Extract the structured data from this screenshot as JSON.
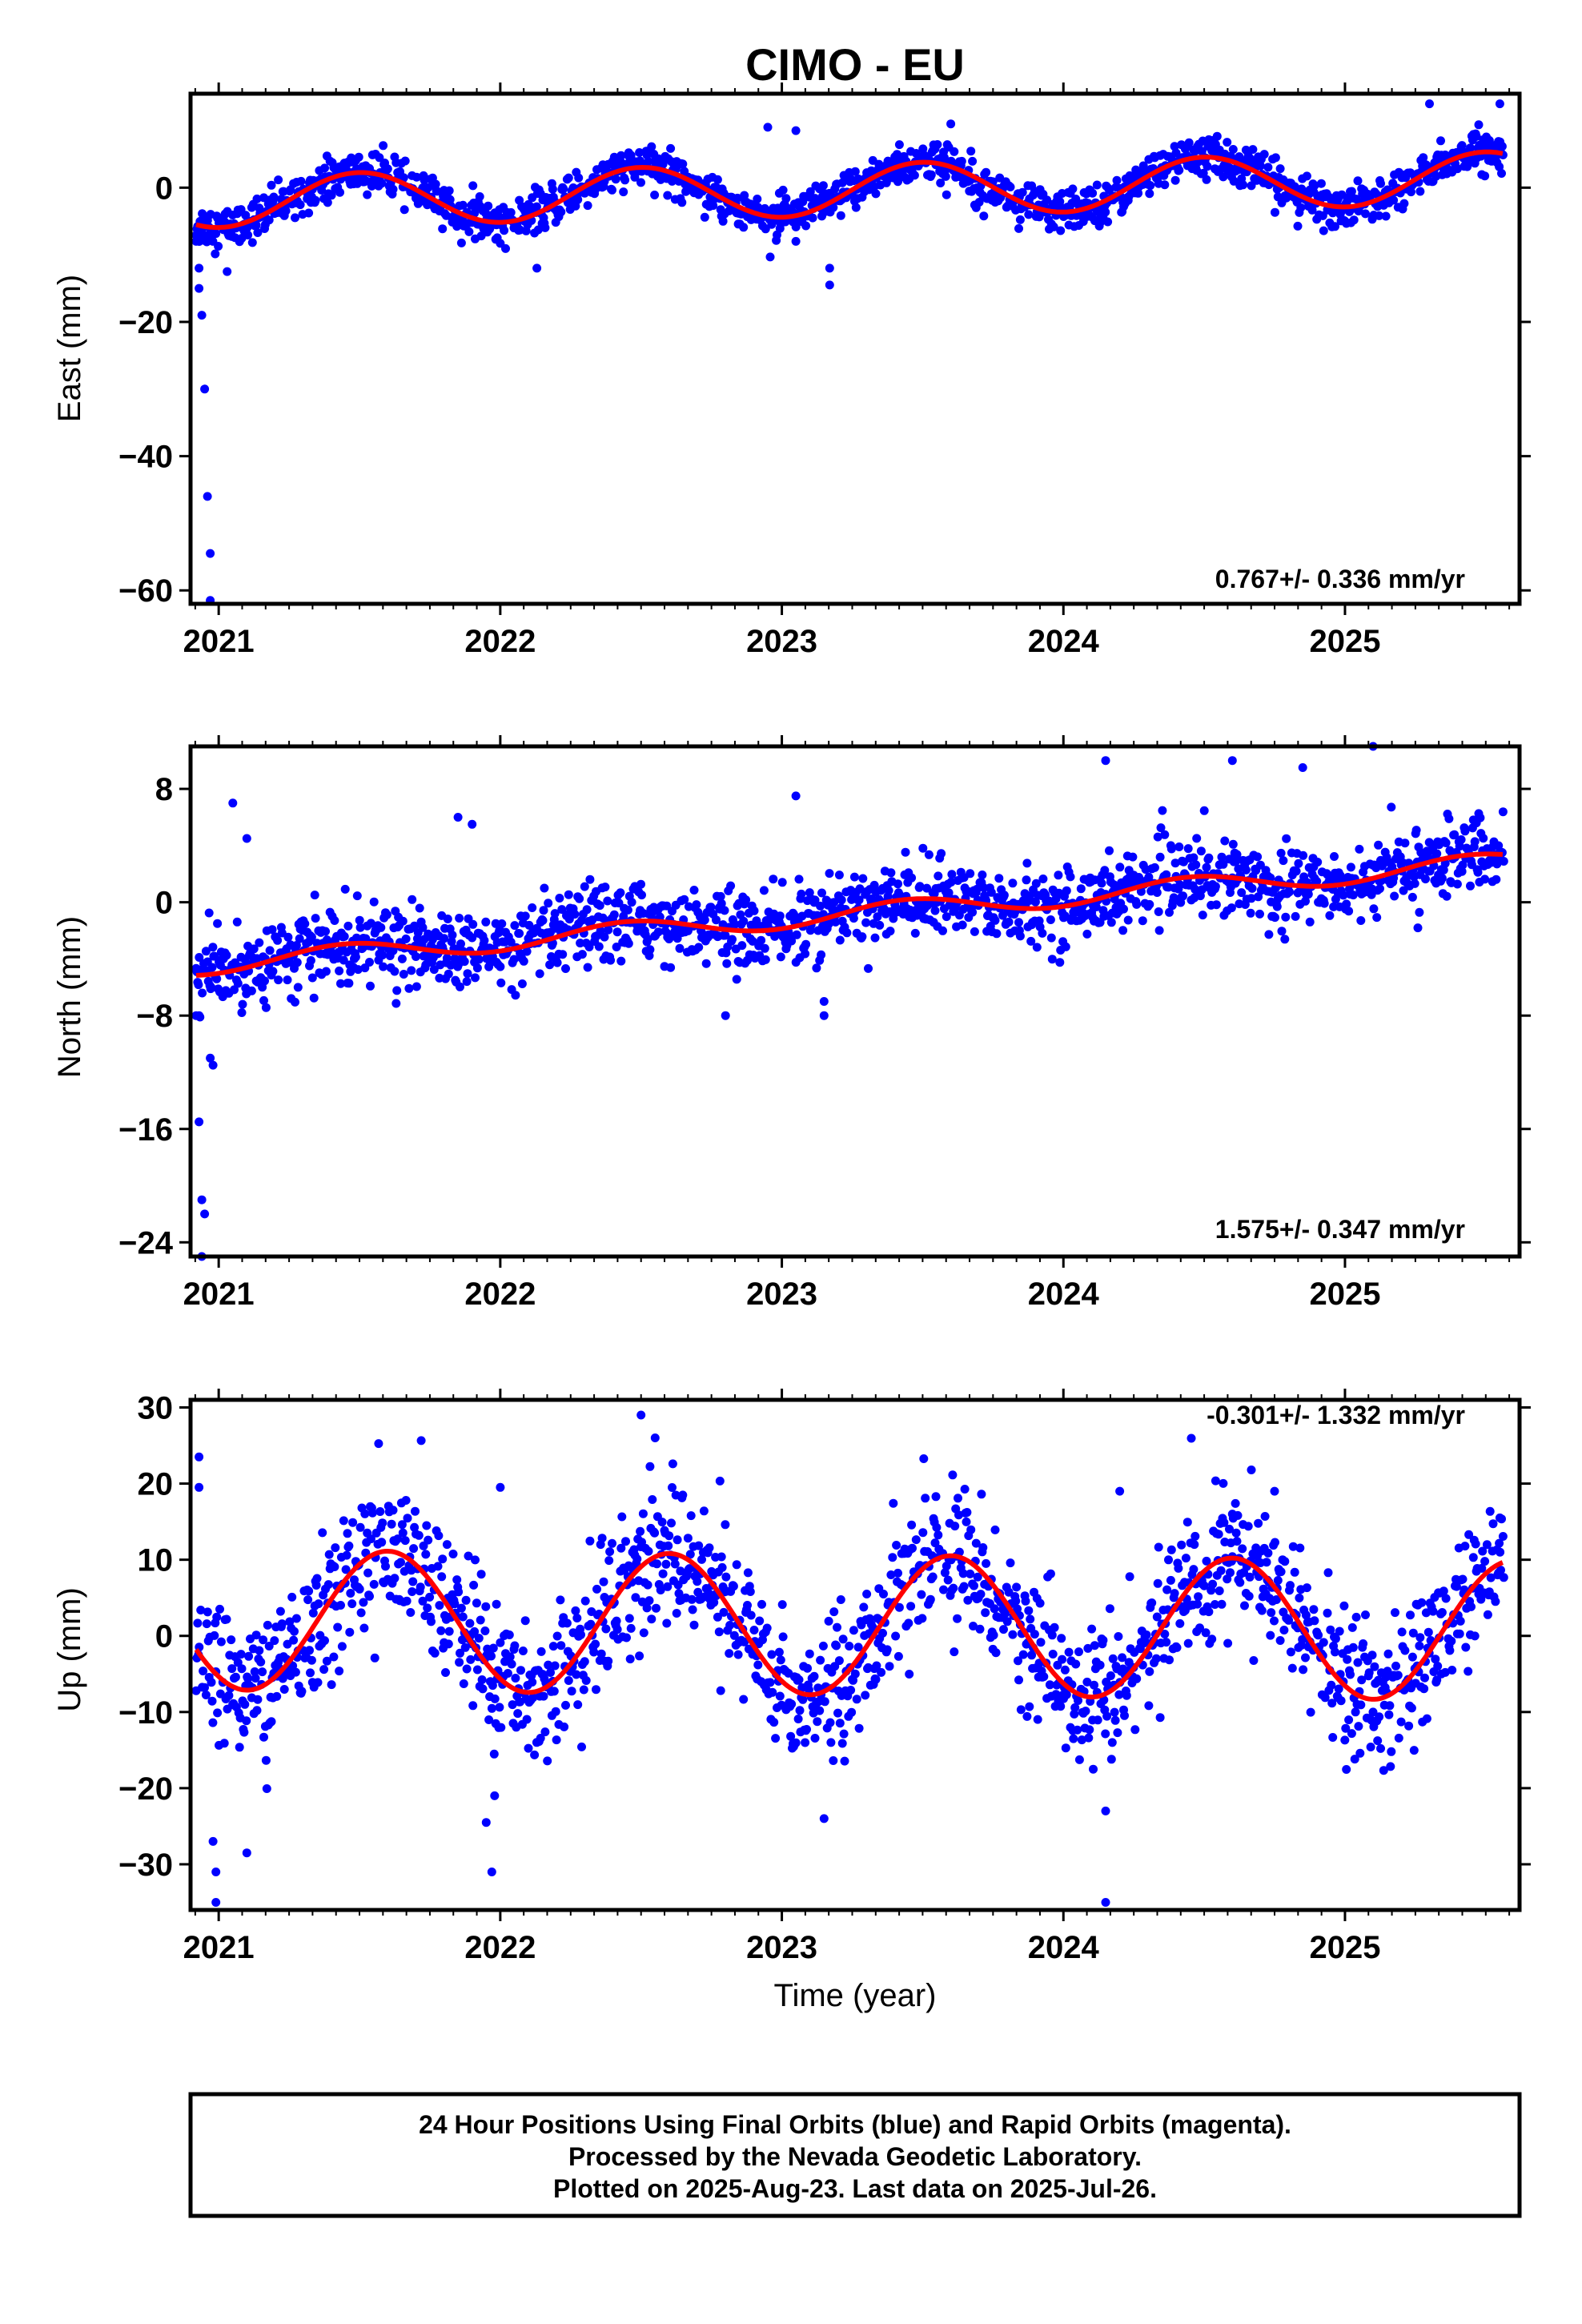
{
  "chart_data": {
    "title": "CIMO - EU",
    "xlabel": "Time (year)",
    "x_ticks": [
      "2021",
      "2022",
      "2023",
      "2024",
      "2025"
    ],
    "xlim": [
      2020.9,
      2025.62
    ],
    "colors": {
      "points": "#0000ff",
      "fit": "#ff0000",
      "frame": "#000000"
    },
    "panels": [
      {
        "type": "scatter",
        "ylabel": "East (mm)",
        "ylim": [
          -62,
          14
        ],
        "y_ticks": [
          "0",
          "−20",
          "−40",
          "−60"
        ],
        "y_tick_values": [
          0,
          -20,
          -40,
          -60
        ],
        "rate": "0.767+/- 0.336 mm/yr",
        "fit": {
          "offset": -0.5,
          "trend": 0.767,
          "annual_amplitude": 3.9,
          "annual_peak": 0.5
        },
        "scatter_sd": 1.5,
        "outliers": [
          [
            2020.92,
            -8
          ],
          [
            2020.93,
            -12
          ],
          [
            2020.93,
            -15
          ],
          [
            2020.94,
            -19
          ],
          [
            2020.95,
            -30
          ],
          [
            2020.96,
            -46
          ],
          [
            2020.97,
            -54.5
          ],
          [
            2020.97,
            -61.5
          ],
          [
            2021.03,
            -12.5
          ],
          [
            2023.17,
            -12
          ],
          [
            2023.17,
            -14.5
          ],
          [
            2022.95,
            9
          ],
          [
            2023.05,
            8.5
          ],
          [
            2023.05,
            -8
          ],
          [
            2022.13,
            -12
          ],
          [
            2023.6,
            9.5
          ],
          [
            2025.3,
            12.5
          ],
          [
            2025.55,
            12.5
          ]
        ]
      },
      {
        "type": "scatter",
        "ylabel": "North (mm)",
        "ylim": [
          -25,
          11
        ],
        "y_ticks": [
          "8",
          "0",
          "−8",
          "−16",
          "−24"
        ],
        "y_tick_values": [
          8,
          0,
          -8,
          -16,
          -24
        ],
        "rate": "1.575+/- 0.347 mm/yr",
        "fit": {
          "offset": -1.2,
          "trend": 1.575,
          "annual_amplitude": 0.7,
          "annual_peak": 0.45
        },
        "scatter_sd": 1.3,
        "outliers": [
          [
            2020.92,
            -8
          ],
          [
            2020.93,
            -8
          ],
          [
            2020.93,
            -15.5
          ],
          [
            2020.94,
            -21
          ],
          [
            2020.95,
            -22
          ],
          [
            2020.94,
            -25
          ],
          [
            2020.97,
            -11
          ],
          [
            2020.98,
            -11.5
          ],
          [
            2021.05,
            7
          ],
          [
            2021.1,
            4.5
          ],
          [
            2021.85,
            6
          ],
          [
            2021.9,
            5.5
          ],
          [
            2022.8,
            -8
          ],
          [
            2023.05,
            7.5
          ],
          [
            2023.15,
            -8
          ],
          [
            2023.15,
            -7
          ],
          [
            2024.15,
            10
          ],
          [
            2024.6,
            10
          ],
          [
            2024.85,
            9.5
          ],
          [
            2025.1,
            11
          ]
        ]
      },
      {
        "type": "scatter",
        "ylabel": "Up (mm)",
        "ylim": [
          -36,
          31
        ],
        "y_ticks": [
          "30",
          "20",
          "10",
          "0",
          "−10",
          "−20",
          "−30"
        ],
        "y_tick_values": [
          30,
          20,
          10,
          0,
          -10,
          -20,
          -30
        ],
        "rate": "-0.301+/- 1.332 mm/yr",
        "fit": {
          "offset": 1.5,
          "trend": -0.301,
          "annual_amplitude": 9.2,
          "annual_peak": 0.6
        },
        "scatter_sd": 4.5,
        "outliers": [
          [
            2020.93,
            23.5
          ],
          [
            2020.93,
            19.5
          ],
          [
            2020.98,
            -27
          ],
          [
            2020.99,
            -31
          ],
          [
            2020.99,
            -35
          ],
          [
            2021.1,
            -28.5
          ],
          [
            2021.95,
            -24.5
          ],
          [
            2021.97,
            -31
          ],
          [
            2021.98,
            -21
          ],
          [
            2022.0,
            19.5
          ],
          [
            2022.5,
            29
          ],
          [
            2022.55,
            26
          ],
          [
            2023.15,
            -24
          ],
          [
            2024.15,
            -35
          ],
          [
            2024.15,
            -23
          ],
          [
            2024.2,
            19
          ],
          [
            2024.6,
            16
          ],
          [
            2024.75,
            19
          ],
          [
            2025.55,
            15.5
          ]
        ]
      }
    ]
  },
  "footer": {
    "line1": "24 Hour Positions Using Final Orbits (blue) and Rapid Orbits (magenta).",
    "line2": "Processed by the Nevada Geodetic Laboratory.",
    "line3": "Plotted on 2025-Aug-23. Last data on 2025-Jul-26."
  }
}
